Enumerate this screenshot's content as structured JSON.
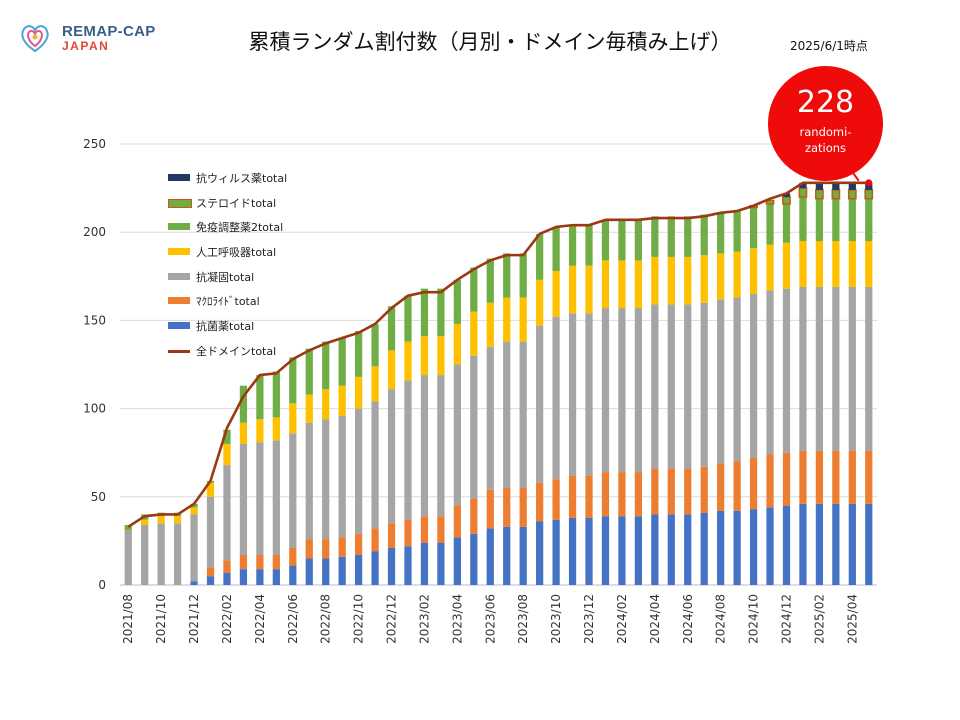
{
  "header": {
    "logo_line1": "REMAP-CAP",
    "logo_line2": "JAPAN",
    "title": "累積ランダム割付数（月別・ドメイン毎積み上げ）",
    "date": "2025/6/1時点"
  },
  "badge": {
    "number": "228",
    "label": "randomi-zations"
  },
  "colors": {
    "antibiotic": "#4472c4",
    "macrolide": "#ed7d31",
    "anticoag": "#a5a5a5",
    "ventilation": "#ffc000",
    "immuno2": "#70ad47",
    "steroid": "#70ad47",
    "steroid_border": "#c55a11",
    "antiviral": "#1f3864",
    "total": "#9b3a12",
    "badge": "#f00b0b"
  },
  "chart_data": {
    "type": "bar",
    "stacked": true,
    "title": "累積ランダム割付数（月別・ドメイン毎積み上げ）",
    "ylim": [
      0,
      250
    ],
    "yticks": [
      0,
      50,
      100,
      150,
      200,
      250
    ],
    "grid": true,
    "legend": "top-left",
    "categories": [
      "2021/08",
      "2021/09",
      "2021/10",
      "2021/11",
      "2021/12",
      "2022/01",
      "2022/02",
      "2022/03",
      "2022/04",
      "2022/05",
      "2022/06",
      "2022/07",
      "2022/08",
      "2022/09",
      "2022/10",
      "2022/11",
      "2022/12",
      "2023/01",
      "2023/02",
      "2023/03",
      "2023/04",
      "2023/05",
      "2023/06",
      "2023/07",
      "2023/08",
      "2023/09",
      "2023/10",
      "2023/11",
      "2023/12",
      "2024/01",
      "2024/02",
      "2024/03",
      "2024/04",
      "2024/05",
      "2024/06",
      "2024/07",
      "2024/08",
      "2024/09",
      "2024/10",
      "2024/11",
      "2024/12",
      "2025/01",
      "2025/02",
      "2025/03",
      "2025/04",
      "2025/05"
    ],
    "tick_labels": [
      "2021/08",
      "2021/10",
      "2021/12",
      "2022/02",
      "2022/04",
      "2022/06",
      "2022/08",
      "2022/10",
      "2022/12",
      "2023/02",
      "2023/04",
      "2023/06",
      "2023/08",
      "2023/10",
      "2023/12",
      "2024/02",
      "2024/04",
      "2024/06",
      "2024/08",
      "2024/10",
      "2024/12",
      "2025/02",
      "2025/04"
    ],
    "series": [
      {
        "key": "antibiotic",
        "name": "抗菌薬total",
        "values": [
          0,
          0,
          0,
          0,
          2,
          5,
          7,
          9,
          9,
          9,
          11,
          15,
          15,
          16,
          17,
          19,
          21,
          22,
          24,
          24,
          27,
          29,
          32,
          33,
          33,
          36,
          37,
          38,
          38,
          39,
          39,
          39,
          40,
          40,
          40,
          41,
          42,
          42,
          43,
          44,
          45,
          46,
          46,
          46,
          46,
          46
        ]
      },
      {
        "key": "macrolide",
        "name": "ﾏｸﾛﾗｲﾄﾞtotal",
        "values": [
          0,
          0,
          0,
          0,
          0,
          5,
          7,
          8,
          8,
          8,
          10,
          11,
          11,
          11,
          12,
          13,
          14,
          15,
          15,
          15,
          18,
          20,
          22,
          22,
          22,
          22,
          23,
          24,
          24,
          25,
          25,
          25,
          26,
          26,
          26,
          26,
          27,
          28,
          29,
          30,
          30,
          30,
          30,
          30,
          30,
          30
        ]
      },
      {
        "key": "anticoag",
        "name": "抗凝固total",
        "values": [
          31,
          34,
          35,
          35,
          38,
          40,
          54,
          63,
          64,
          65,
          65,
          66,
          68,
          69,
          71,
          72,
          76,
          79,
          80,
          80,
          80,
          81,
          81,
          83,
          83,
          89,
          92,
          92,
          92,
          93,
          93,
          93,
          93,
          93,
          93,
          93,
          93,
          93,
          93,
          93,
          93,
          93,
          93,
          93,
          93,
          93
        ]
      },
      {
        "key": "ventilation",
        "name": "人工呼吸器total",
        "values": [
          0,
          3,
          4,
          4,
          4,
          8,
          12,
          12,
          13,
          13,
          17,
          16,
          17,
          17,
          18,
          20,
          22,
          22,
          22,
          22,
          23,
          25,
          25,
          25,
          25,
          26,
          26,
          27,
          27,
          27,
          27,
          27,
          27,
          27,
          27,
          27,
          26,
          26,
          26,
          26,
          26,
          26,
          26,
          26,
          26,
          26
        ]
      },
      {
        "key": "immuno2",
        "name": "免疫調整薬2total",
        "values": [
          3,
          3,
          2,
          2,
          2,
          1,
          8,
          21,
          25,
          26,
          26,
          26,
          27,
          27,
          26,
          24,
          25,
          26,
          27,
          27,
          25,
          25,
          25,
          25,
          25,
          26,
          25,
          23,
          23,
          23,
          23,
          23,
          23,
          23,
          23,
          23,
          23,
          23,
          23,
          23,
          22,
          25,
          24,
          24,
          24,
          24
        ]
      },
      {
        "key": "steroid",
        "name": "ステロイドtotal",
        "values": [
          0,
          0,
          0,
          0,
          0,
          0,
          0,
          0,
          0,
          0,
          0,
          0,
          0,
          0,
          0,
          0,
          0,
          0,
          0,
          0,
          0,
          0,
          0,
          0,
          0,
          0,
          0,
          0,
          0,
          0,
          0,
          0,
          0,
          0,
          0,
          0,
          0,
          0,
          1,
          2,
          4,
          5,
          5,
          5,
          5,
          5
        ]
      },
      {
        "key": "antiviral",
        "name": "抗ウィルス薬total",
        "values": [
          0,
          0,
          0,
          0,
          0,
          0,
          0,
          0,
          0,
          0,
          0,
          0,
          0,
          0,
          0,
          0,
          0,
          0,
          0,
          0,
          0,
          0,
          0,
          0,
          0,
          0,
          0,
          0,
          0,
          0,
          0,
          0,
          0,
          0,
          0,
          0,
          0,
          0,
          0,
          0,
          2,
          3,
          4,
          4,
          4,
          4
        ]
      }
    ],
    "total": {
      "name": "全ドメインtotal",
      "values": [
        33,
        39,
        40,
        40,
        46,
        59,
        89,
        107,
        119,
        120,
        128,
        133,
        137,
        140,
        143,
        148,
        157,
        164,
        166,
        166,
        173,
        179,
        184,
        187,
        187,
        199,
        203,
        204,
        204,
        207,
        207,
        207,
        208,
        208,
        208,
        209,
        211,
        212,
        215,
        219,
        222,
        228,
        228,
        228,
        228,
        228
      ]
    },
    "legend_order": [
      "antiviral",
      "steroid",
      "immuno2",
      "ventilation",
      "anticoag",
      "macrolide",
      "antibiotic",
      "total"
    ]
  }
}
